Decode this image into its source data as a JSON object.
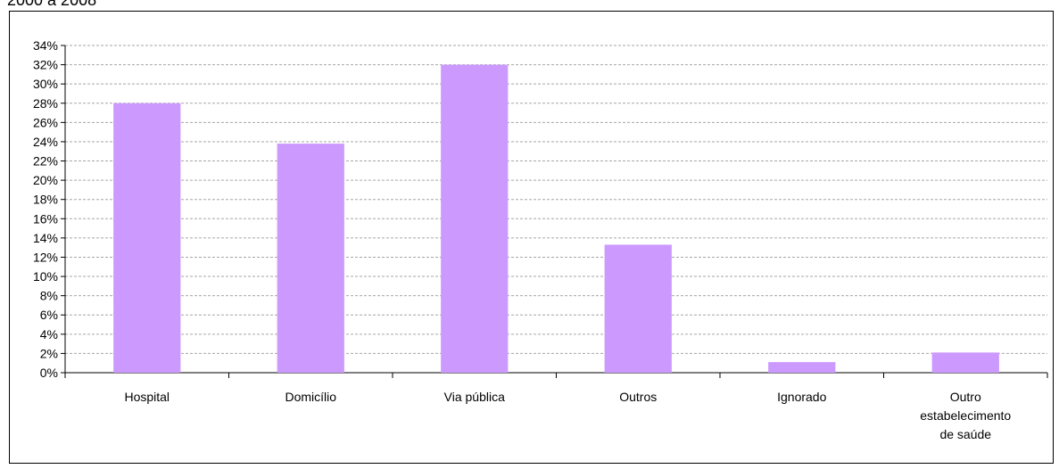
{
  "caption": "2000 a 2008",
  "chart_data": {
    "type": "bar",
    "categories": [
      "Hospital",
      "Domicílio",
      "Via pública",
      "Outros",
      "Ignorado",
      "Outro estabelecimento de saúde"
    ],
    "category_label_lines": [
      [
        "Hospital"
      ],
      [
        "Domicílio"
      ],
      [
        "Via pública"
      ],
      [
        "Outros"
      ],
      [
        "Ignorado"
      ],
      [
        "Outro",
        "estabelecimento",
        "de saúde"
      ]
    ],
    "values": [
      28.0,
      23.8,
      32.0,
      13.3,
      1.1,
      2.1
    ],
    "unit": "%",
    "ylim": [
      0,
      34
    ],
    "ytick_step": 2,
    "grid": true,
    "bar_color": "#cc99ff",
    "title": "",
    "xlabel": "",
    "ylabel": ""
  }
}
